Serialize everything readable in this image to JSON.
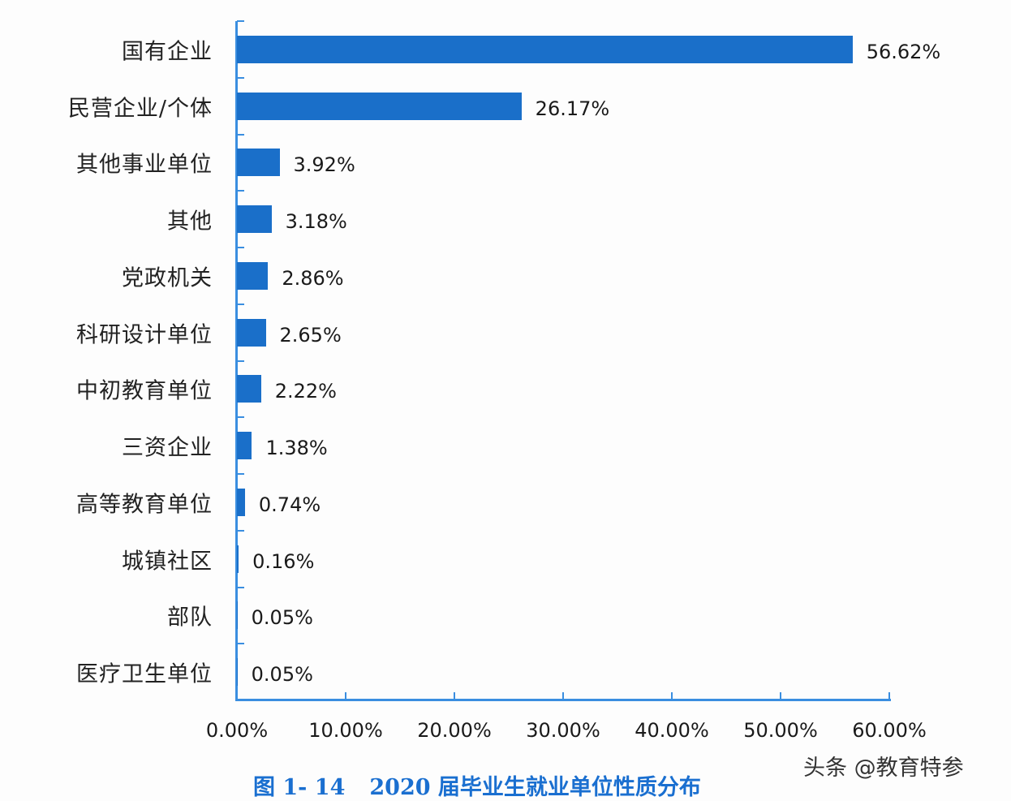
{
  "chart_data": {
    "type": "bar",
    "orientation": "horizontal",
    "title": "图 1- 14  2020 届毕业生就业单位性质分布",
    "xlabel": "",
    "ylabel": "",
    "xlim": [
      0,
      60
    ],
    "grid": false,
    "legend": null,
    "categories": [
      "国有企业",
      "民营企业/个体",
      "其他事业单位",
      "其他",
      "党政机关",
      "科研设计单位",
      "中初教育单位",
      "三资企业",
      "高等教育单位",
      "城镇社区",
      "部队",
      "医疗卫生单位"
    ],
    "values": [
      56.62,
      26.17,
      3.92,
      3.18,
      2.86,
      2.65,
      2.22,
      1.38,
      0.74,
      0.16,
      0.05,
      0.05
    ],
    "value_labels": [
      "56.62%",
      "26.17%",
      "3.92%",
      "3.18%",
      "2.86%",
      "2.65%",
      "2.22%",
      "1.38%",
      "0.74%",
      "0.16%",
      "0.05%",
      "0.05%"
    ],
    "x_ticks": [
      0,
      10,
      20,
      30,
      40,
      50,
      60
    ],
    "x_tick_labels": [
      "0.00%",
      "10.00%",
      "20.00%",
      "30.00%",
      "40.00%",
      "50.00%",
      "60.00%"
    ],
    "bar_color": "#1a6fc9",
    "axis_color": "#3a8ee0"
  },
  "caption": {
    "figure_no": "图 1- 14",
    "text": "2020 届毕业生就业单位性质分布",
    "color": "#1a6fd0"
  },
  "watermark": "头条 @教育特参"
}
